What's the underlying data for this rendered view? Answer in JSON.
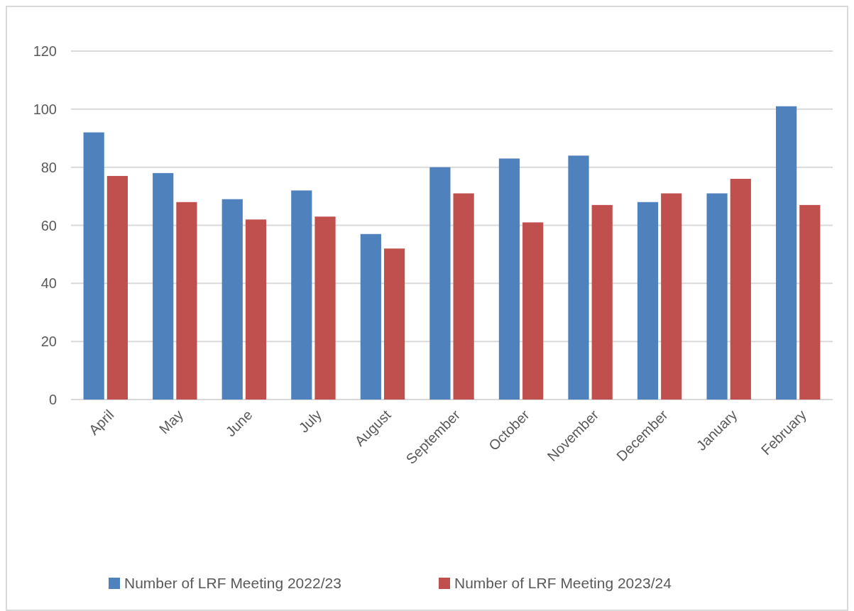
{
  "chart_data": {
    "type": "bar",
    "categories": [
      "April",
      "May",
      "June",
      "July",
      "August",
      "September",
      "October",
      "November",
      "December",
      "January",
      "February"
    ],
    "series": [
      {
        "name": "Number of LRF Meeting 2022/23",
        "color": "#4f81bd",
        "values": [
          92,
          78,
          69,
          72,
          57,
          80,
          83,
          84,
          68,
          71,
          101
        ]
      },
      {
        "name": "Number of LRF Meeting 2023/24",
        "color": "#c0504d",
        "values": [
          77,
          68,
          62,
          63,
          52,
          71,
          61,
          67,
          71,
          76,
          67
        ]
      }
    ],
    "ylim": [
      0,
      120
    ],
    "yticks": [
      0,
      20,
      40,
      60,
      80,
      100,
      120
    ],
    "grid": "y",
    "legend": "bottom"
  }
}
